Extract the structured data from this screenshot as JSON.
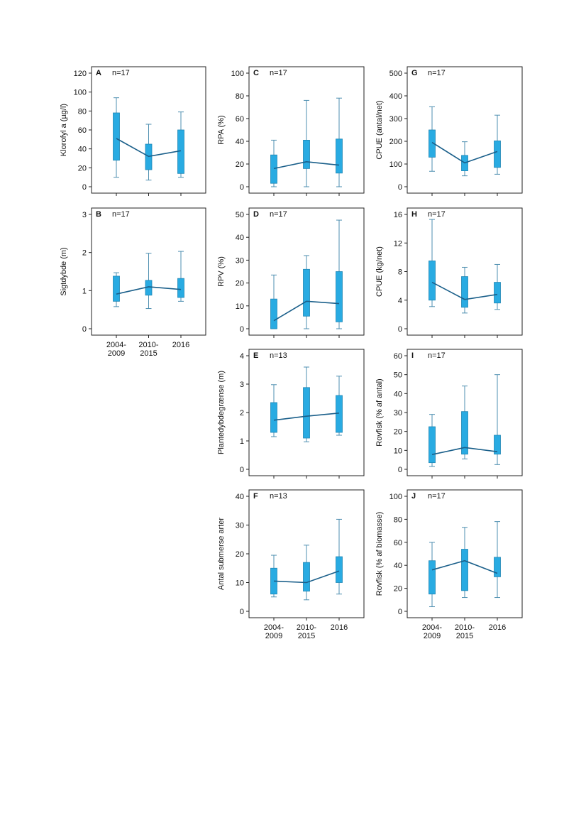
{
  "colors": {
    "box": "#29abe2",
    "box_edge": "#1f86b5",
    "whisker": "#4e8fb0",
    "line": "#1a5f8a",
    "frame": "#222222"
  },
  "categories": [
    "2004-\n2009",
    "2010-\n2015",
    "2016"
  ],
  "chart_data": [
    {
      "id": "A",
      "type": "box",
      "letter": "A",
      "n_label": "n=17",
      "ylabel": "Klorofyl a (µg/l)",
      "ylim": [
        0,
        120
      ],
      "yticks": [
        0,
        20,
        40,
        60,
        80,
        100,
        120
      ],
      "series": [
        {
          "min": 10,
          "q1": 28,
          "q3": 78,
          "max": 94
        },
        {
          "min": 7,
          "q1": 18,
          "q3": 45,
          "max": 66
        },
        {
          "min": 10,
          "q1": 14,
          "q3": 60,
          "max": 79
        }
      ],
      "mean_line": [
        51,
        32,
        38
      ],
      "show_categories": false
    },
    {
      "id": "B",
      "type": "box",
      "letter": "B",
      "n_label": "n=17",
      "ylabel": "Sigtdybde (m)",
      "ylim": [
        0,
        3
      ],
      "yticks": [
        0,
        1,
        2,
        3
      ],
      "series": [
        {
          "min": 0.58,
          "q1": 0.72,
          "q3": 1.38,
          "max": 1.47
        },
        {
          "min": 0.53,
          "q1": 0.88,
          "q3": 1.27,
          "max": 1.98
        },
        {
          "min": 0.72,
          "q1": 0.82,
          "q3": 1.32,
          "max": 2.03
        }
      ],
      "mean_line": [
        0.91,
        1.1,
        1.03
      ],
      "show_categories": true
    },
    {
      "id": "C",
      "type": "box",
      "letter": "C",
      "n_label": "n=17",
      "ylabel": "RPA (%)",
      "ylim": [
        0,
        100
      ],
      "yticks": [
        0,
        20,
        40,
        60,
        80,
        100
      ],
      "series": [
        {
          "min": 0,
          "q1": 3,
          "q3": 28,
          "max": 41
        },
        {
          "min": 0,
          "q1": 16,
          "q3": 41,
          "max": 76
        },
        {
          "min": 0,
          "q1": 12,
          "q3": 42,
          "max": 78
        }
      ],
      "mean_line": [
        16,
        22,
        19
      ],
      "show_categories": false
    },
    {
      "id": "D",
      "type": "box",
      "letter": "D",
      "n_label": "n=17",
      "ylabel": "RPV (%)",
      "ylim": [
        0,
        50
      ],
      "yticks": [
        0,
        10,
        20,
        30,
        40,
        50
      ],
      "series": [
        {
          "min": 0,
          "q1": 0,
          "q3": 13,
          "max": 23.5
        },
        {
          "min": 0,
          "q1": 5.5,
          "q3": 26,
          "max": 32
        },
        {
          "min": 0,
          "q1": 3,
          "q3": 25,
          "max": 47.5
        }
      ],
      "mean_line": [
        3.5,
        12,
        11
      ],
      "show_categories": false
    },
    {
      "id": "E",
      "type": "box",
      "letter": "E",
      "n_label": "n=13",
      "ylabel": "Plantedybdegrænse (m)",
      "ylim": [
        0,
        4
      ],
      "yticks": [
        0,
        1,
        2,
        3,
        4
      ],
      "series": [
        {
          "min": 1.15,
          "q1": 1.3,
          "q3": 2.35,
          "max": 2.98
        },
        {
          "min": 0.97,
          "q1": 1.1,
          "q3": 2.88,
          "max": 3.6
        },
        {
          "min": 1.2,
          "q1": 1.3,
          "q3": 2.6,
          "max": 3.28
        }
      ],
      "mean_line": [
        1.73,
        1.87,
        1.98
      ],
      "show_categories": false
    },
    {
      "id": "F",
      "type": "box",
      "letter": "F",
      "n_label": "n=13",
      "ylabel": "Antal submerse arter",
      "ylim": [
        0,
        40
      ],
      "yticks": [
        0,
        10,
        20,
        30,
        40
      ],
      "series": [
        {
          "min": 5,
          "q1": 6,
          "q3": 15,
          "max": 19.5
        },
        {
          "min": 4,
          "q1": 7,
          "q3": 17,
          "max": 23
        },
        {
          "min": 6,
          "q1": 10,
          "q3": 19,
          "max": 32
        }
      ],
      "mean_line": [
        10.5,
        10,
        14
      ],
      "show_categories": true
    },
    {
      "id": "G",
      "type": "box",
      "letter": "G",
      "n_label": "n=17",
      "ylabel": "CPUE (antal/net)",
      "ylim": [
        0,
        500
      ],
      "yticks": [
        0,
        100,
        200,
        300,
        400,
        500
      ],
      "series": [
        {
          "min": 68,
          "q1": 130,
          "q3": 250,
          "max": 352
        },
        {
          "min": 48,
          "q1": 70,
          "q3": 138,
          "max": 198
        },
        {
          "min": 55,
          "q1": 85,
          "q3": 202,
          "max": 315
        }
      ],
      "mean_line": [
        195,
        105,
        155
      ],
      "show_categories": false
    },
    {
      "id": "H",
      "type": "box",
      "letter": "H",
      "n_label": "n=17",
      "ylabel": "CPUE (kg/net)",
      "ylim": [
        0,
        16
      ],
      "yticks": [
        0,
        4,
        8,
        12,
        16
      ],
      "series": [
        {
          "min": 3.1,
          "q1": 4,
          "q3": 9.5,
          "max": 15.3
        },
        {
          "min": 2.2,
          "q1": 3,
          "q3": 7.3,
          "max": 8.6
        },
        {
          "min": 2.7,
          "q1": 3.6,
          "q3": 6.5,
          "max": 9
        }
      ],
      "mean_line": [
        6.5,
        4.1,
        4.8
      ],
      "show_categories": false
    },
    {
      "id": "I",
      "type": "box",
      "letter": "I",
      "n_label": "n=17",
      "ylabel": "Rovfisk (% af antal)",
      "ylim": [
        0,
        60
      ],
      "yticks": [
        0,
        10,
        20,
        30,
        40,
        50,
        60
      ],
      "series": [
        {
          "min": 1.5,
          "q1": 3.5,
          "q3": 22.5,
          "max": 29
        },
        {
          "min": 5.5,
          "q1": 8,
          "q3": 30.5,
          "max": 44
        },
        {
          "min": 2.5,
          "q1": 8,
          "q3": 18,
          "max": 50
        }
      ],
      "mean_line": [
        7.8,
        11.5,
        9.3
      ],
      "show_categories": false
    },
    {
      "id": "J",
      "type": "box",
      "letter": "J",
      "n_label": "n=17",
      "ylabel": "Rovfisk (% af biomasse)",
      "ylim": [
        0,
        100
      ],
      "yticks": [
        0,
        20,
        40,
        60,
        80,
        100
      ],
      "series": [
        {
          "min": 4,
          "q1": 15,
          "q3": 44,
          "max": 60
        },
        {
          "min": 12,
          "q1": 18,
          "q3": 54,
          "max": 73
        },
        {
          "min": 12,
          "q1": 30,
          "q3": 47,
          "max": 78
        }
      ],
      "mean_line": [
        36,
        44,
        33
      ],
      "show_categories": true
    }
  ]
}
